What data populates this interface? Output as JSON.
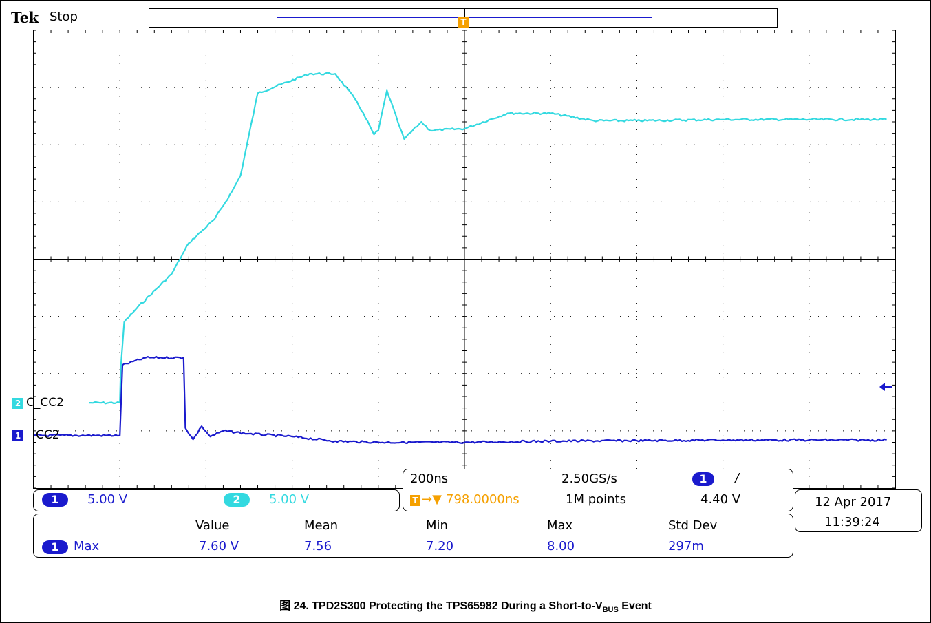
{
  "header": {
    "logo": "Tek",
    "status": "Stop"
  },
  "markers": {
    "trigger_glyph": "T",
    "ch1": "1",
    "ch2": "2"
  },
  "channels": [
    {
      "id": "1",
      "name": "CC2",
      "color": "#1a1acd",
      "scale": "5.00 V"
    },
    {
      "id": "2",
      "name": "C_CC2",
      "color": "#33d9e0",
      "scale": "5.00 V"
    }
  ],
  "timebase": {
    "scale": "200ns",
    "sample_rate": "2.50GS/s",
    "trigger_position": "798.0000ns",
    "record_length": "1M points",
    "trigger_source": "1",
    "trigger_slope_glyph": "/",
    "trigger_level": "4.40 V"
  },
  "datetime": {
    "date": "12 Apr  2017",
    "time": "11:39:24"
  },
  "measurements": {
    "headers": [
      "Value",
      "Mean",
      "Min",
      "Max",
      "Std Dev"
    ],
    "rows": [
      {
        "channel": "1",
        "name": "Max",
        "values": [
          "7.60 V",
          "7.56",
          "7.20",
          "8.00",
          "297m"
        ]
      }
    ]
  },
  "caption": {
    "prefix": "图 24. TPD2S300 Protecting the TPS65982 During a Short-to-V",
    "subscript": "BUS",
    "suffix": " Event"
  },
  "chart_data": {
    "type": "line",
    "x_unit": "divisions",
    "y_unit": "divisions",
    "xlim": [
      0,
      10
    ],
    "ylim": [
      -4,
      4
    ],
    "grid": true,
    "series": [
      {
        "name": "C_CC2",
        "color": "#33d9e0",
        "x": [
          0.64,
          1.0,
          1.01,
          1.05,
          1.2,
          1.6,
          1.8,
          2.1,
          2.3,
          2.4,
          2.6,
          3.2,
          3.5,
          3.75,
          3.95,
          4.0,
          4.1,
          4.25,
          4.3,
          4.5,
          4.6,
          5.0,
          5.5,
          6.0,
          6.5,
          7.0,
          8.0,
          9.0,
          9.9
        ],
        "y": [
          -2.51,
          -2.51,
          -1.9,
          -1.1,
          -0.85,
          -0.26,
          0.28,
          0.7,
          1.18,
          1.46,
          2.9,
          3.24,
          3.24,
          2.76,
          2.18,
          2.25,
          2.95,
          2.3,
          2.1,
          2.4,
          2.25,
          2.28,
          2.55,
          2.55,
          2.42,
          2.42,
          2.44,
          2.44,
          2.44
        ]
      },
      {
        "name": "CC2",
        "color": "#1a1acd",
        "x": [
          0.0,
          1.0,
          1.03,
          1.3,
          1.74,
          1.76,
          1.85,
          1.95,
          2.05,
          2.2,
          2.5,
          3.0,
          3.5,
          4.0,
          5.0,
          6.0,
          7.0,
          8.0,
          9.0,
          9.9
        ],
        "y": [
          -3.08,
          -3.08,
          -1.85,
          -1.72,
          -1.72,
          -2.95,
          -3.15,
          -2.92,
          -3.1,
          -3.0,
          -3.05,
          -3.1,
          -3.18,
          -3.2,
          -3.2,
          -3.18,
          -3.17,
          -3.16,
          -3.16,
          -3.16
        ]
      }
    ]
  }
}
